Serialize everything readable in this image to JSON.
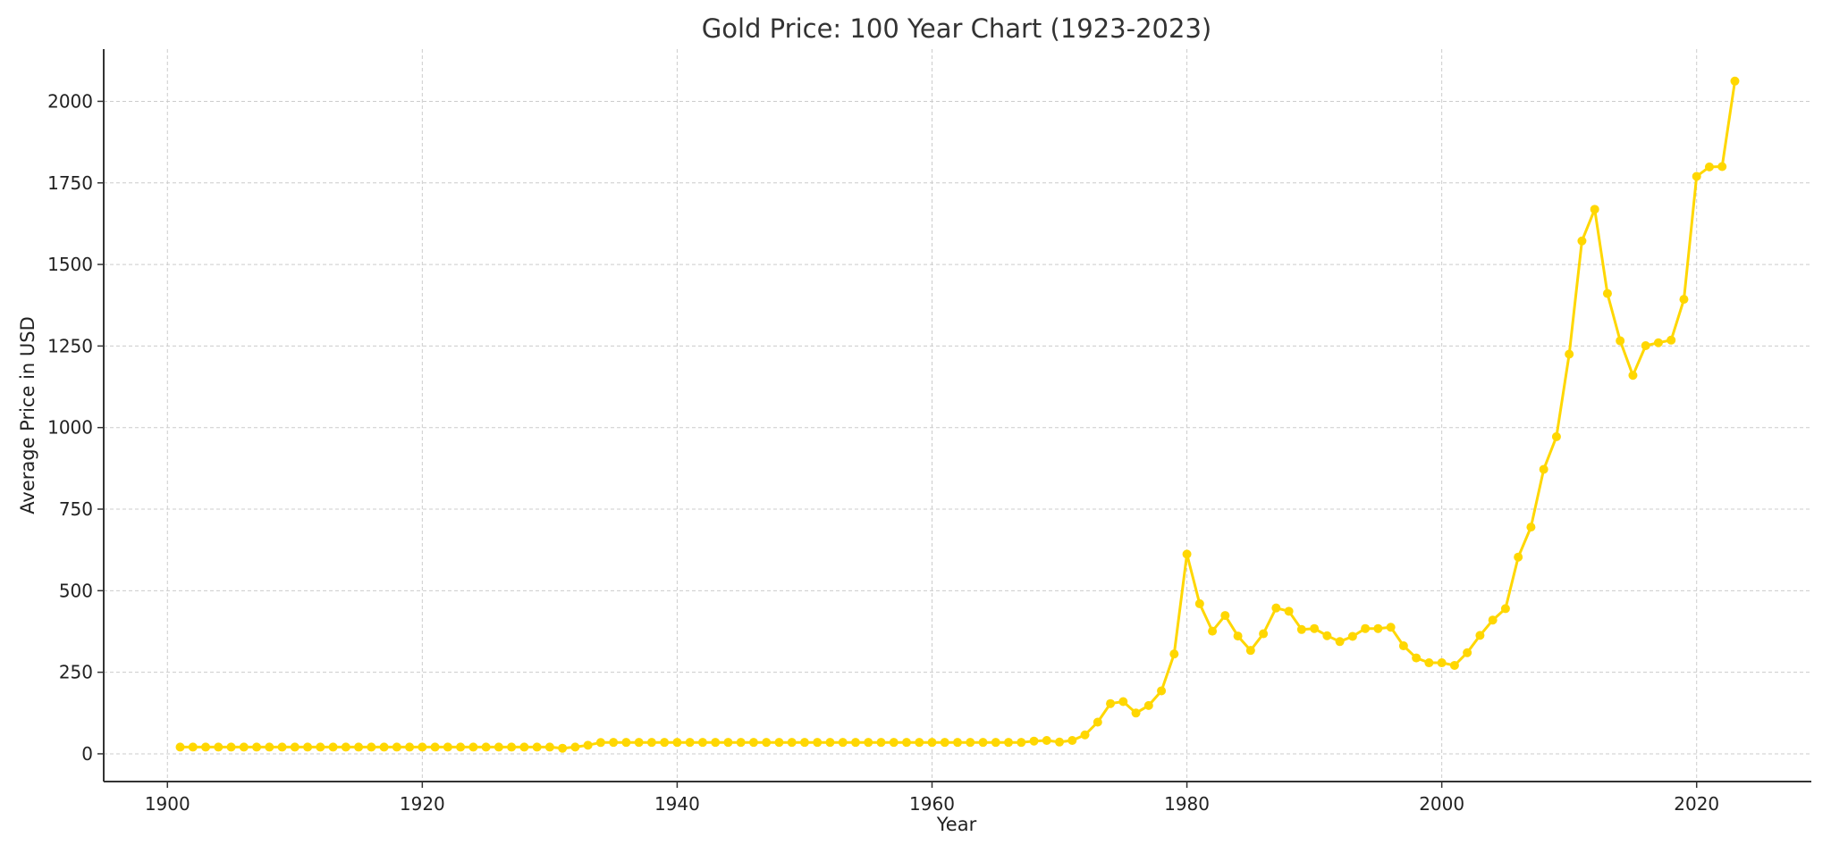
{
  "chart_data": {
    "type": "line",
    "title": "Gold Price: 100 Year Chart (1923-2023)",
    "xlabel": "Year",
    "ylabel": "Average Price in USD",
    "xlim": [
      1895,
      2029
    ],
    "ylim": [
      -85,
      2160
    ],
    "xticks": [
      1900,
      1920,
      1940,
      1960,
      1980,
      2000,
      2020
    ],
    "yticks": [
      0,
      250,
      500,
      750,
      1000,
      1250,
      1500,
      1750,
      2000
    ],
    "grid": true,
    "line_color": "#FFD700",
    "series": [
      {
        "x": [
          1901,
          1902,
          1903,
          1904,
          1905,
          1906,
          1907,
          1908,
          1909,
          1910,
          1911,
          1912,
          1913,
          1914,
          1915,
          1916,
          1917,
          1918,
          1919,
          1920,
          1921,
          1922,
          1923,
          1924,
          1925,
          1926,
          1927,
          1928,
          1929,
          1930,
          1931,
          1932,
          1933,
          1934,
          1935,
          1936,
          1937,
          1938,
          1939,
          1940,
          1941,
          1942,
          1943,
          1944,
          1945,
          1946,
          1947,
          1948,
          1949,
          1950,
          1951,
          1952,
          1953,
          1954,
          1955,
          1956,
          1957,
          1958,
          1959,
          1960,
          1961,
          1962,
          1963,
          1964,
          1965,
          1966,
          1967,
          1968,
          1969,
          1970,
          1971,
          1972,
          1973,
          1974,
          1975,
          1976,
          1977,
          1978,
          1979,
          1980,
          1981,
          1982,
          1983,
          1984,
          1985,
          1986,
          1987,
          1988,
          1989,
          1990,
          1991,
          1992,
          1993,
          1994,
          1995,
          1996,
          1997,
          1998,
          1999,
          2000,
          2001,
          2002,
          2003,
          2004,
          2005,
          2006,
          2007,
          2008,
          2009,
          2010,
          2011,
          2012,
          2013,
          2014,
          2015,
          2016,
          2017,
          2018,
          2019,
          2020,
          2021,
          2022,
          2023
        ],
        "values": [
          20.67,
          20.67,
          20.67,
          20.67,
          20.67,
          20.67,
          20.67,
          20.67,
          20.67,
          20.67,
          20.67,
          20.67,
          20.67,
          20.67,
          20.67,
          20.67,
          20.67,
          20.67,
          20.67,
          20.67,
          20.67,
          20.67,
          20.67,
          20.67,
          20.67,
          20.67,
          20.67,
          20.67,
          20.67,
          20.67,
          17.06,
          20.69,
          26.33,
          34.69,
          35,
          35,
          35,
          35,
          35,
          35,
          35,
          35,
          35,
          35,
          35,
          35,
          35,
          35,
          35,
          35,
          35,
          35,
          35,
          35,
          35,
          35,
          35,
          35,
          35,
          35,
          35,
          35,
          35,
          35,
          35,
          35,
          35,
          39,
          41,
          36,
          41,
          58,
          97,
          154,
          160,
          125,
          148,
          193,
          306,
          612,
          460,
          376,
          424,
          361,
          317,
          368,
          447,
          437,
          381,
          384,
          362,
          344,
          360,
          384,
          384,
          388,
          331,
          294,
          279,
          279,
          271,
          310,
          363,
          410,
          445,
          603,
          695,
          872,
          972,
          1225,
          1572,
          1669,
          1411,
          1266,
          1160,
          1251,
          1260,
          1268,
          1393,
          1770,
          1799,
          1800,
          2062
        ]
      }
    ]
  }
}
